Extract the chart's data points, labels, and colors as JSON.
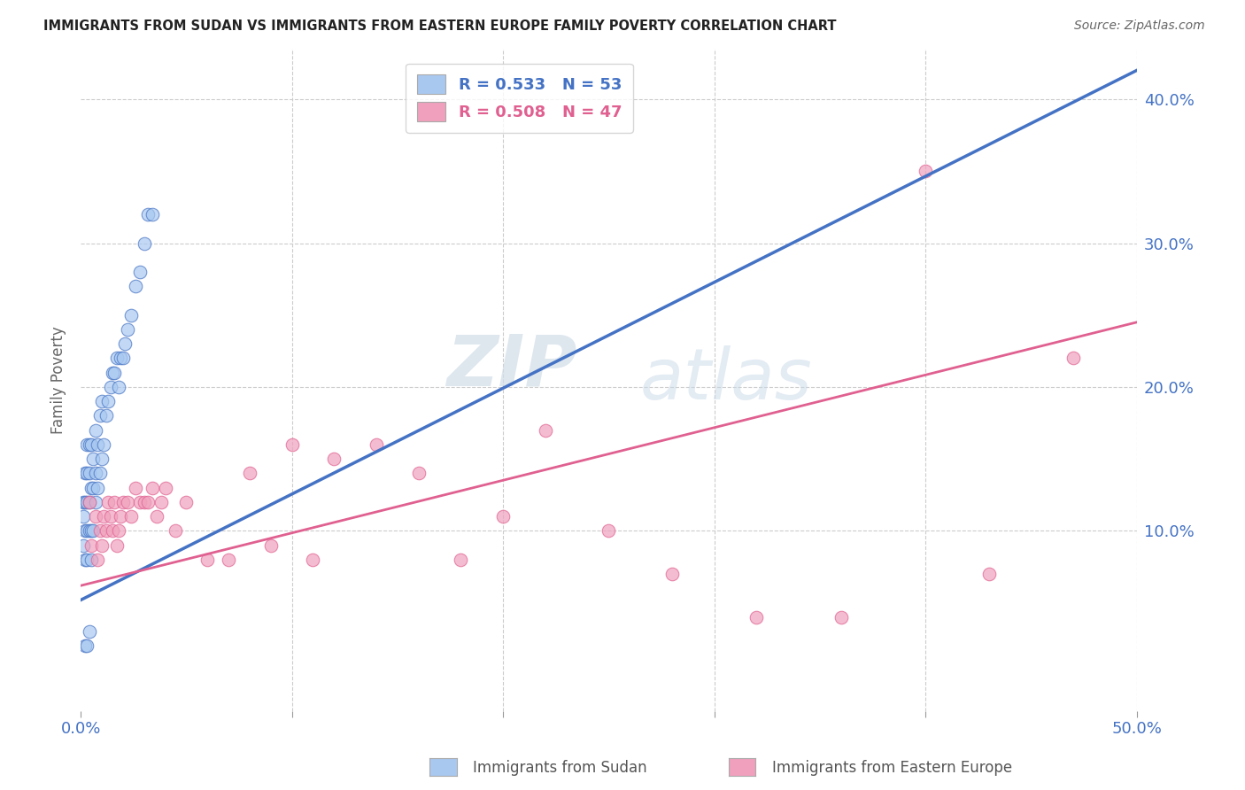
{
  "title": "IMMIGRANTS FROM SUDAN VS IMMIGRANTS FROM EASTERN EUROPE FAMILY POVERTY CORRELATION CHART",
  "source": "Source: ZipAtlas.com",
  "ylabel": "Family Poverty",
  "legend_sudan": "R = 0.533   N = 53",
  "legend_eastern": "R = 0.508   N = 47",
  "legend_label_sudan": "Immigrants from Sudan",
  "legend_label_eastern": "Immigrants from Eastern Europe",
  "watermark_zip": "ZIP",
  "watermark_atlas": "atlas",
  "right_yticks": [
    "40.0%",
    "30.0%",
    "20.0%",
    "10.0%"
  ],
  "right_ytick_vals": [
    0.4,
    0.3,
    0.2,
    0.1
  ],
  "xlim": [
    0.0,
    0.5
  ],
  "ylim": [
    -0.025,
    0.435
  ],
  "color_sudan": "#a8c8f0",
  "color_eastern": "#f0a0bc",
  "color_sudan_line": "#4472c4",
  "color_eastern_line": "#e06090",
  "color_tick_labels": "#4472c4",
  "sudan_x": [
    0.001,
    0.001,
    0.001,
    0.002,
    0.002,
    0.002,
    0.002,
    0.003,
    0.003,
    0.003,
    0.003,
    0.003,
    0.004,
    0.004,
    0.004,
    0.004,
    0.005,
    0.005,
    0.005,
    0.005,
    0.006,
    0.006,
    0.006,
    0.007,
    0.007,
    0.007,
    0.008,
    0.008,
    0.009,
    0.009,
    0.01,
    0.01,
    0.011,
    0.012,
    0.013,
    0.014,
    0.015,
    0.016,
    0.017,
    0.018,
    0.019,
    0.02,
    0.021,
    0.022,
    0.024,
    0.026,
    0.028,
    0.03,
    0.032,
    0.034,
    0.002,
    0.003,
    0.004
  ],
  "sudan_y": [
    0.09,
    0.11,
    0.12,
    0.08,
    0.1,
    0.12,
    0.14,
    0.08,
    0.1,
    0.12,
    0.14,
    0.16,
    0.1,
    0.12,
    0.14,
    0.16,
    0.08,
    0.1,
    0.13,
    0.16,
    0.1,
    0.13,
    0.15,
    0.12,
    0.14,
    0.17,
    0.13,
    0.16,
    0.14,
    0.18,
    0.15,
    0.19,
    0.16,
    0.18,
    0.19,
    0.2,
    0.21,
    0.21,
    0.22,
    0.2,
    0.22,
    0.22,
    0.23,
    0.24,
    0.25,
    0.27,
    0.28,
    0.3,
    0.32,
    0.32,
    0.02,
    0.02,
    0.03
  ],
  "eastern_x": [
    0.004,
    0.005,
    0.007,
    0.008,
    0.009,
    0.01,
    0.011,
    0.012,
    0.013,
    0.014,
    0.015,
    0.016,
    0.017,
    0.018,
    0.019,
    0.02,
    0.022,
    0.024,
    0.026,
    0.028,
    0.03,
    0.032,
    0.034,
    0.036,
    0.038,
    0.04,
    0.045,
    0.05,
    0.06,
    0.07,
    0.08,
    0.09,
    0.1,
    0.11,
    0.12,
    0.14,
    0.16,
    0.18,
    0.2,
    0.22,
    0.25,
    0.28,
    0.32,
    0.36,
    0.4,
    0.43,
    0.47
  ],
  "eastern_y": [
    0.12,
    0.09,
    0.11,
    0.08,
    0.1,
    0.09,
    0.11,
    0.1,
    0.12,
    0.11,
    0.1,
    0.12,
    0.09,
    0.1,
    0.11,
    0.12,
    0.12,
    0.11,
    0.13,
    0.12,
    0.12,
    0.12,
    0.13,
    0.11,
    0.12,
    0.13,
    0.1,
    0.12,
    0.08,
    0.08,
    0.14,
    0.09,
    0.16,
    0.08,
    0.15,
    0.16,
    0.14,
    0.08,
    0.11,
    0.17,
    0.1,
    0.07,
    0.04,
    0.04,
    0.35,
    0.07,
    0.22
  ],
  "sudan_trend_x": [
    0.0,
    0.5
  ],
  "sudan_trend_y": [
    0.052,
    0.42
  ],
  "eastern_trend_x": [
    0.0,
    0.5
  ],
  "eastern_trend_y": [
    0.062,
    0.245
  ],
  "grid_color": "#cccccc",
  "background_color": "#ffffff"
}
